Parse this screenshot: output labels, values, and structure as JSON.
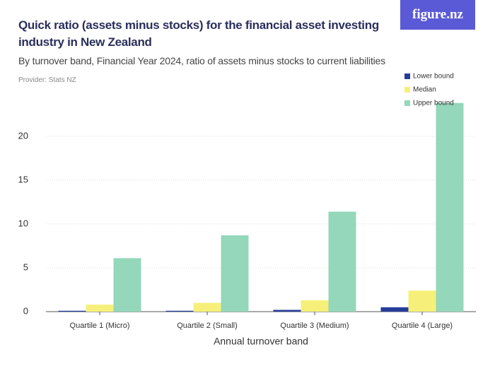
{
  "logo": "figure.nz",
  "chart_data": {
    "type": "bar",
    "title": "Quick ratio (assets minus stocks) for the financial asset investing industry in New Zealand",
    "subtitle": "By turnover band, Financial Year 2024, ratio of assets minus stocks to current liabilities",
    "provider": "Provider: Stats NZ",
    "x_label": "Annual turnover band",
    "categories": [
      "Quartile 1 (Micro)",
      "Quartile 2 (Small)",
      "Quartile 3 (Medium)",
      "Quartile 4 (Large)"
    ],
    "series": [
      {
        "name": "Lower bound",
        "color": "#263c9a",
        "values": [
          0.1,
          0.1,
          0.2,
          0.5
        ]
      },
      {
        "name": "Median",
        "color": "#f6f07a",
        "values": [
          0.8,
          1.0,
          1.3,
          2.4
        ]
      },
      {
        "name": "Upper bound",
        "color": "#94d7bb",
        "values": [
          6.1,
          8.7,
          11.4,
          23.8
        ]
      }
    ],
    "ylim": [
      0,
      24.5
    ],
    "yticks": [
      0,
      5,
      10,
      15,
      20
    ],
    "grid": true
  }
}
